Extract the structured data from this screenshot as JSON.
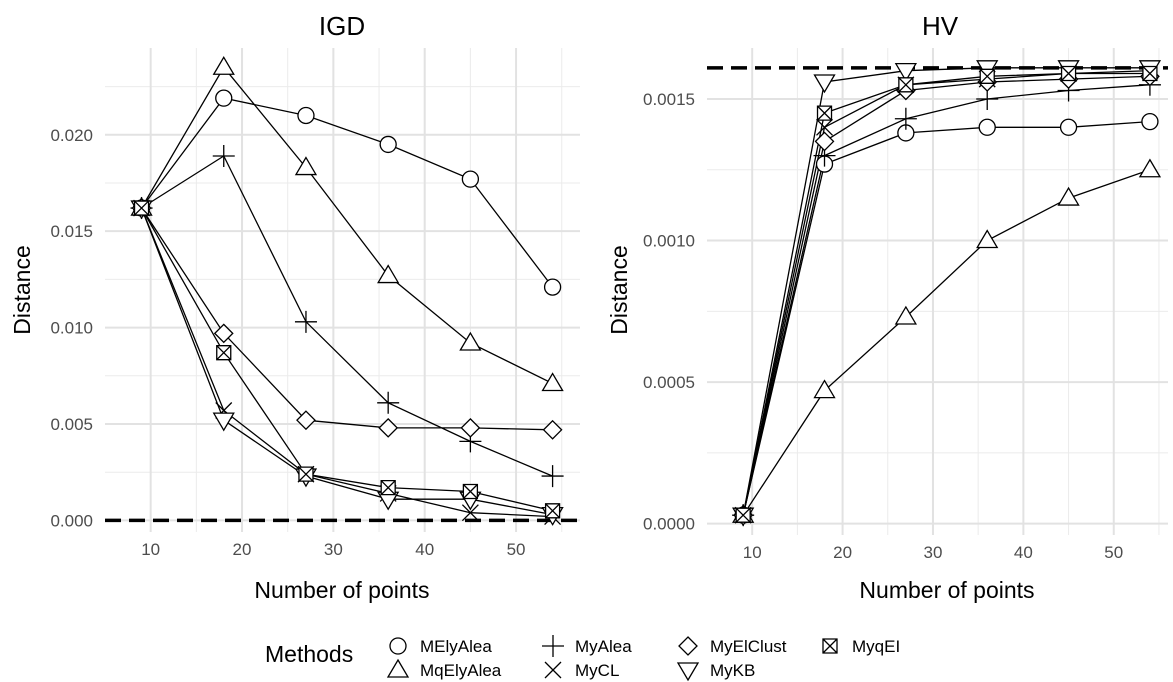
{
  "legend": {
    "title": "Methods",
    "entries": [
      {
        "name": "MElyAlea",
        "shape": "circle"
      },
      {
        "name": "MqElyAlea",
        "shape": "triangle-up"
      },
      {
        "name": "MyAlea",
        "shape": "plus"
      },
      {
        "name": "MyCL",
        "shape": "cross"
      },
      {
        "name": "MyElClust",
        "shape": "diamond"
      },
      {
        "name": "MyKB",
        "shape": "triangle-down"
      },
      {
        "name": "MyqEI",
        "shape": "square-cross"
      }
    ]
  },
  "chart_data": [
    {
      "type": "line",
      "title": "IGD",
      "xlabel": "Number of points",
      "ylabel": "Distance",
      "xlim": [
        5,
        57
      ],
      "ylim": [
        -0.0006,
        0.0245
      ],
      "xticks": [
        10,
        20,
        30,
        40,
        50
      ],
      "yticks": [
        0.0,
        0.005,
        0.01,
        0.015,
        0.02
      ],
      "ytick_labels": [
        "0.000",
        "0.005",
        "0.010",
        "0.015",
        "0.020"
      ],
      "grid": true,
      "reference_line": 0.0,
      "x": [
        9,
        18,
        27,
        36,
        45,
        54
      ],
      "series": [
        {
          "name": "MElyAlea",
          "shape": "circle",
          "values": [
            0.0162,
            0.0219,
            0.021,
            0.0195,
            0.0177,
            0.0121
          ]
        },
        {
          "name": "MqElyAlea",
          "shape": "triangle-up",
          "values": [
            0.0162,
            0.0235,
            0.0183,
            0.0127,
            0.0092,
            0.0071
          ]
        },
        {
          "name": "MyAlea",
          "shape": "plus",
          "values": [
            0.0162,
            0.0189,
            0.0103,
            0.0061,
            0.0041,
            0.0023
          ]
        },
        {
          "name": "MyCL",
          "shape": "cross",
          "values": [
            0.0162,
            0.0057,
            0.0024,
            0.0014,
            0.0004,
            0.0002
          ]
        },
        {
          "name": "MyElClust",
          "shape": "diamond",
          "values": [
            0.0162,
            0.0097,
            0.0052,
            0.0048,
            0.0048,
            0.0047
          ]
        },
        {
          "name": "MyKB",
          "shape": "triangle-down",
          "values": [
            0.0162,
            0.0052,
            0.0023,
            0.0011,
            0.0011,
            0.0003
          ]
        },
        {
          "name": "MyqEI",
          "shape": "square-cross",
          "values": [
            0.0162,
            0.0087,
            0.0024,
            0.0017,
            0.0015,
            0.0005
          ]
        }
      ]
    },
    {
      "type": "line",
      "title": "HV",
      "xlabel": "Number of points",
      "ylabel": "Distance",
      "xlim": [
        5,
        56
      ],
      "ylim": [
        -4e-05,
        0.00168
      ],
      "xticks": [
        10,
        20,
        30,
        40,
        50
      ],
      "yticks": [
        0.0,
        0.0005,
        0.001,
        0.0015
      ],
      "ytick_labels": [
        "0.0000",
        "0.0005",
        "0.0010",
        "0.0015"
      ],
      "grid": true,
      "reference_line": 0.00161,
      "x": [
        9,
        18,
        27,
        36,
        45,
        54
      ],
      "series": [
        {
          "name": "MElyAlea",
          "shape": "circle",
          "values": [
            3e-05,
            0.00127,
            0.00138,
            0.0014,
            0.0014,
            0.00142
          ]
        },
        {
          "name": "MqElyAlea",
          "shape": "triangle-up",
          "values": [
            3e-05,
            0.00047,
            0.00073,
            0.001,
            0.00115,
            0.00125
          ]
        },
        {
          "name": "MyAlea",
          "shape": "plus",
          "values": [
            3e-05,
            0.0013,
            0.00143,
            0.0015,
            0.00153,
            0.00155
          ]
        },
        {
          "name": "MyCL",
          "shape": "cross",
          "values": [
            3e-05,
            0.0014,
            0.00155,
            0.00157,
            0.00159,
            0.0016
          ]
        },
        {
          "name": "MyElClust",
          "shape": "diamond",
          "values": [
            3e-05,
            0.00135,
            0.00153,
            0.00156,
            0.00157,
            0.00158
          ]
        },
        {
          "name": "MyKB",
          "shape": "triangle-down",
          "values": [
            3e-05,
            0.00156,
            0.0016,
            0.00161,
            0.00161,
            0.00161
          ]
        },
        {
          "name": "MyqEI",
          "shape": "square-cross",
          "values": [
            3e-05,
            0.00145,
            0.00155,
            0.00158,
            0.00159,
            0.00159
          ]
        }
      ]
    }
  ]
}
